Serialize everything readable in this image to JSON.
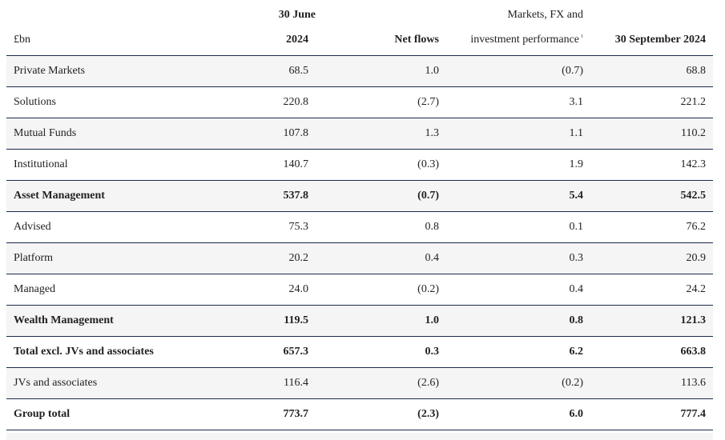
{
  "table": {
    "header": {
      "row1": [
        "",
        "30 June",
        "",
        "Markets, FX and",
        ""
      ],
      "row2": [
        "£bn",
        "2024",
        "Net flows",
        "investment performance",
        "30 September 2024"
      ],
      "footnote_marker": "1"
    },
    "rows": [
      {
        "label": "Private Markets",
        "c2": "68.5",
        "c3": "1.0",
        "c4": "(0.7)",
        "c5": "68.8",
        "bold": false
      },
      {
        "label": "Solutions",
        "c2": "220.8",
        "c3": "(2.7)",
        "c4": "3.1",
        "c5": "221.2",
        "bold": false
      },
      {
        "label": "Mutual Funds",
        "c2": "107.8",
        "c3": "1.3",
        "c4": "1.1",
        "c5": "110.2",
        "bold": false
      },
      {
        "label": "Institutional",
        "c2": "140.7",
        "c3": "(0.3)",
        "c4": "1.9",
        "c5": "142.3",
        "bold": false
      },
      {
        "label": "Asset Management",
        "c2": "537.8",
        "c3": "(0.7)",
        "c4": "5.4",
        "c5": "542.5",
        "bold": true
      },
      {
        "label": "Advised",
        "c2": "75.3",
        "c3": "0.8",
        "c4": "0.1",
        "c5": "76.2",
        "bold": false
      },
      {
        "label": "Platform",
        "c2": "20.2",
        "c3": "0.4",
        "c4": "0.3",
        "c5": "20.9",
        "bold": false
      },
      {
        "label": "Managed",
        "c2": "24.0",
        "c3": "(0.2)",
        "c4": "0.4",
        "c5": "24.2",
        "bold": false
      },
      {
        "label": "Wealth Management",
        "c2": "119.5",
        "c3": "1.0",
        "c4": "0.8",
        "c5": "121.3",
        "bold": true
      },
      {
        "label": "Total excl. JVs and associates",
        "c2": "657.3",
        "c3": "0.3",
        "c4": "6.2",
        "c5": "663.8",
        "bold": true
      },
      {
        "label": "JVs and associates",
        "c2": "116.4",
        "c3": "(2.6)",
        "c4": "(0.2)",
        "c5": "113.6",
        "bold": false
      },
      {
        "label": "Group total",
        "c2": "773.7",
        "c3": "(2.3)",
        "c4": "6.0",
        "c5": "777.4",
        "bold": true
      }
    ]
  }
}
